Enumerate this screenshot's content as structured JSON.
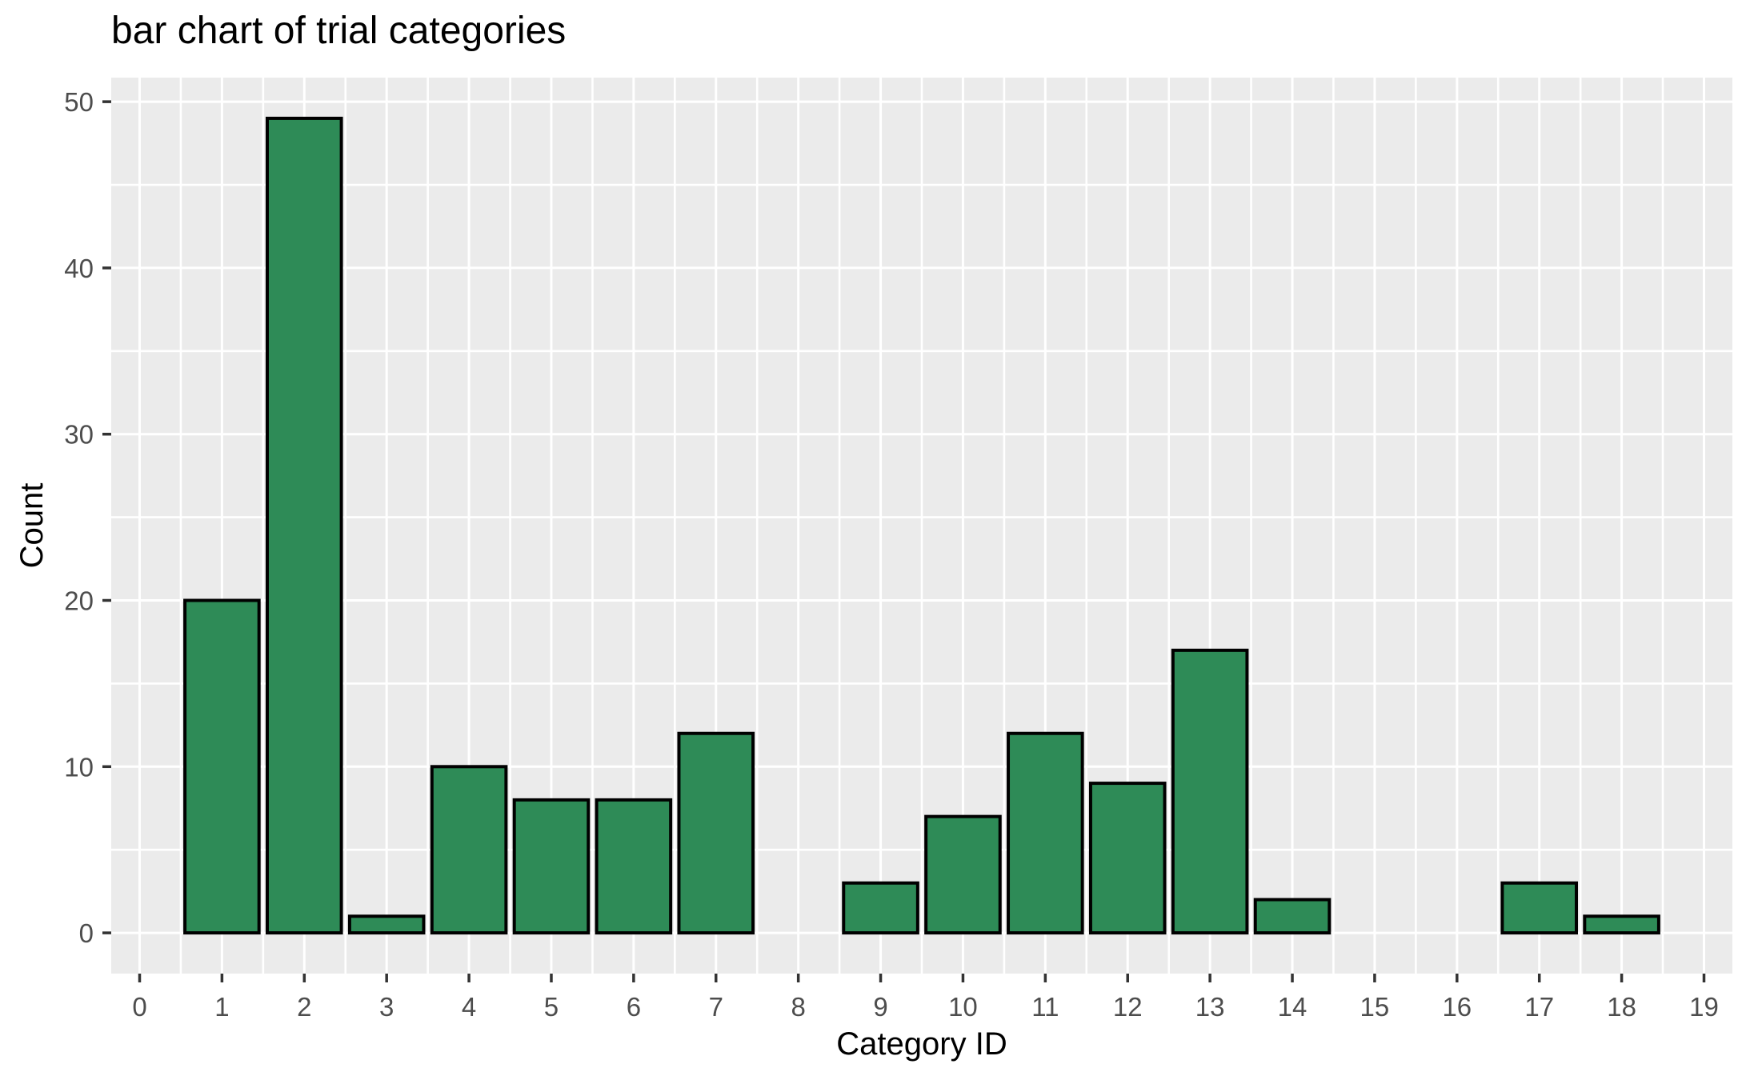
{
  "chart_data": {
    "type": "bar",
    "title": "bar chart of trial categories",
    "xlabel": "Category ID",
    "ylabel": "Count",
    "bars": [
      {
        "category": 1,
        "count": 20
      },
      {
        "category": 2,
        "count": 49
      },
      {
        "category": 3,
        "count": 1
      },
      {
        "category": 4,
        "count": 10
      },
      {
        "category": 5,
        "count": 8
      },
      {
        "category": 6,
        "count": 8
      },
      {
        "category": 7,
        "count": 12
      },
      {
        "category": 9,
        "count": 3
      },
      {
        "category": 10,
        "count": 7
      },
      {
        "category": 11,
        "count": 12
      },
      {
        "category": 12,
        "count": 9
      },
      {
        "category": 13,
        "count": 17
      },
      {
        "category": 14,
        "count": 2
      },
      {
        "category": 17,
        "count": 3
      },
      {
        "category": 18,
        "count": 1
      }
    ],
    "bar_width": 0.9,
    "x_ticks": [
      0,
      1,
      2,
      3,
      4,
      5,
      6,
      7,
      8,
      9,
      10,
      11,
      12,
      13,
      14,
      15,
      16,
      17,
      18,
      19
    ],
    "y_ticks": [
      0,
      10,
      20,
      30,
      40,
      50
    ],
    "y_minor_ticks": [
      5,
      15,
      25,
      35,
      45
    ],
    "xlim": [
      -0.345,
      19.345
    ],
    "ylim": [
      -2.45,
      51.45
    ],
    "grid": true,
    "legend_position": "none",
    "colors": {
      "bar_fill": "#2e8b57",
      "bar_stroke": "#000000",
      "panel_bg": "#ebebeb",
      "grid_major": "#ffffff",
      "grid_minor": "#ffffff",
      "tick_label": "#4d4d4d",
      "tick_mark": "#333333",
      "text": "#000000",
      "background": "#ffffff"
    }
  }
}
